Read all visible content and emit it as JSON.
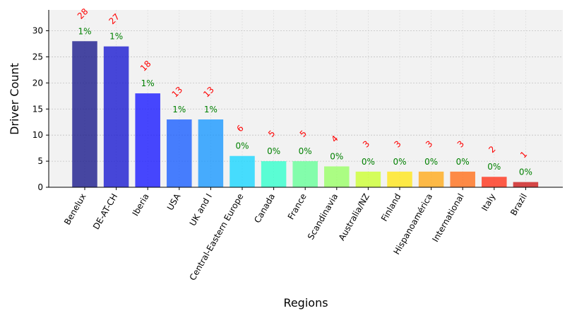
{
  "chart_data": {
    "type": "bar",
    "title": "",
    "xlabel": "Regions",
    "ylabel": "Driver Count",
    "ylim": [
      0,
      34
    ],
    "yticks": [
      0,
      5,
      10,
      15,
      20,
      25,
      30
    ],
    "grid": true,
    "categories": [
      "Benelux",
      "DE-AT-CH",
      "Iberia",
      "USA",
      "UK and I",
      "Central-Eastern Europe",
      "Canada",
      "France",
      "Scandinavia",
      "Australia/NZ",
      "Finland",
      "Hispanoamérica",
      "International",
      "Italy",
      "Brazil"
    ],
    "values": [
      28,
      27,
      18,
      13,
      13,
      6,
      5,
      5,
      4,
      3,
      3,
      3,
      3,
      2,
      1
    ],
    "count_labels": [
      "28",
      "27",
      "18",
      "13",
      "13",
      "6",
      "5",
      "5",
      "4",
      "3",
      "3",
      "3",
      "3",
      "2",
      "1"
    ],
    "percent_labels": [
      "1%",
      "1%",
      "1%",
      "1%",
      "1%",
      "0%",
      "0%",
      "0%",
      "0%",
      "0%",
      "0%",
      "0%",
      "0%",
      "0%",
      "0%"
    ],
    "colors": [
      "#1a1a8c",
      "#1a1ad1",
      "#1a1aff",
      "#1a5fff",
      "#1a99ff",
      "#1ad6ff",
      "#33ffcc",
      "#66ff99",
      "#99ff66",
      "#ccff33",
      "#ffe61a",
      "#ffaa1a",
      "#ff6f1a",
      "#ff331a",
      "#cc1a1a"
    ],
    "colors_note_label_count": "#ff0000",
    "colors_note_label_pct": "#008000"
  }
}
